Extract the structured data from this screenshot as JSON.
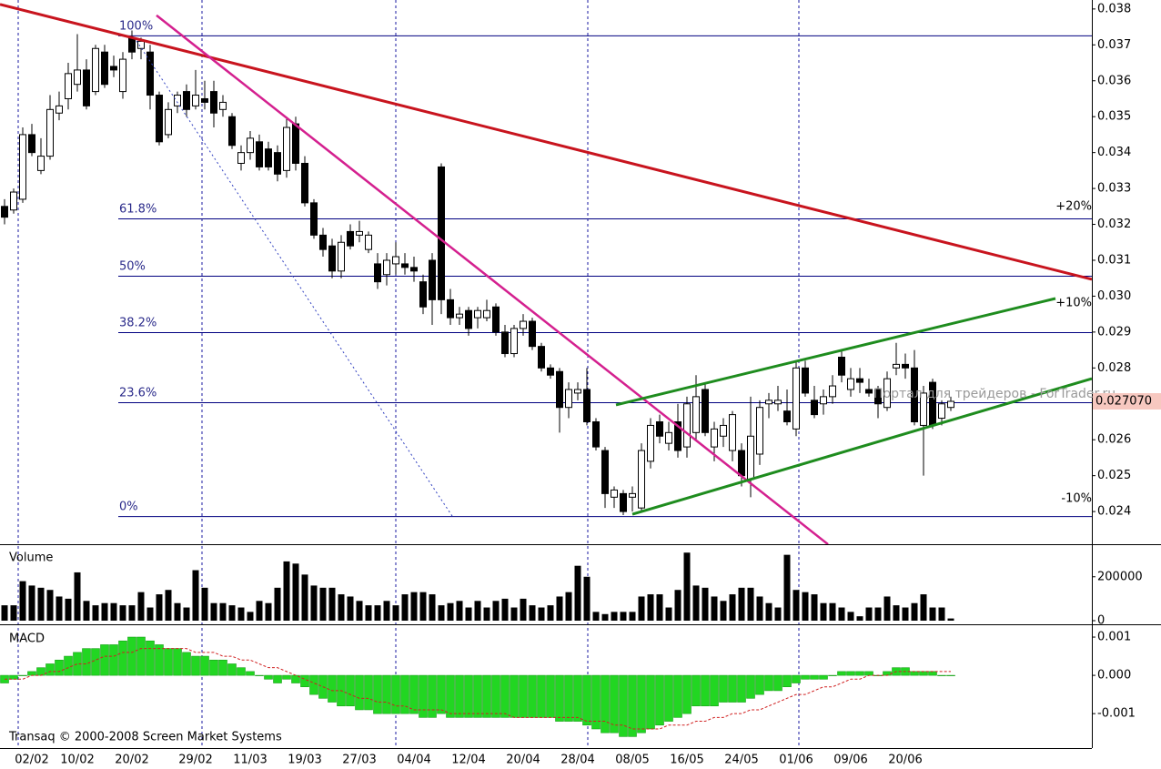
{
  "chart_data": [
    {
      "type": "candlestick",
      "credit": "Transaq © 2000-2008 Screen Market Systems",
      "watermark": "Портал для трейдеров - ForTrader.ru",
      "categories": [
        null,
        null,
        null,
        "02/02",
        null,
        null,
        null,
        null,
        "10/02",
        null,
        null,
        null,
        null,
        null,
        "20/02",
        null,
        null,
        null,
        null,
        null,
        null,
        "29/02",
        null,
        null,
        null,
        null,
        null,
        "11/03",
        null,
        null,
        null,
        null,
        null,
        "19/03",
        null,
        null,
        null,
        null,
        null,
        "27/03",
        null,
        null,
        null,
        null,
        null,
        "04/04",
        null,
        null,
        null,
        null,
        null,
        "12/04",
        null,
        null,
        null,
        null,
        null,
        "20/04",
        null,
        null,
        null,
        null,
        null,
        "28/04",
        null,
        null,
        null,
        null,
        null,
        "08/05",
        null,
        null,
        null,
        null,
        null,
        "16/05",
        null,
        null,
        null,
        null,
        null,
        "24/05",
        null,
        null,
        null,
        null,
        null,
        "01/06",
        null,
        null,
        null,
        null,
        null,
        "09/06",
        null,
        null,
        null,
        null,
        null,
        "20/06",
        null,
        null,
        null,
        null,
        null
      ],
      "open": [
        0.0325,
        0.0324,
        0.0327,
        0.0345,
        0.0335,
        0.0339,
        0.0351,
        0.0355,
        0.0359,
        0.0363,
        0.0357,
        0.0368,
        0.0364,
        0.0357,
        0.0372,
        0.0369,
        0.0368,
        0.0356,
        0.0345,
        0.0353,
        0.0357,
        0.0353,
        0.0355,
        0.0357,
        0.0352,
        0.035,
        0.0337,
        0.034,
        0.0343,
        0.0341,
        0.034,
        0.0335,
        0.0348,
        0.0337,
        0.0326,
        0.0317,
        0.0314,
        0.0307,
        0.0318,
        0.0317,
        0.0313,
        0.0309,
        0.0306,
        0.0309,
        0.0309,
        0.0308,
        0.0304,
        0.031,
        0.0336,
        0.0299,
        0.0294,
        0.0296,
        0.0294,
        0.0294,
        0.0297,
        0.029,
        0.0284,
        0.0291,
        0.0293,
        0.0286,
        0.028,
        0.0279,
        0.0269,
        0.0273,
        0.0274,
        0.0265,
        0.0257,
        0.0244,
        0.0245,
        0.0244,
        0.0241,
        0.0254,
        0.0265,
        0.0259,
        0.0265,
        0.0258,
        0.0262,
        0.0274,
        0.0258,
        0.0261,
        0.0257,
        0.0257,
        0.0249,
        0.0256,
        0.027,
        0.027,
        0.0268,
        0.0263,
        0.028,
        0.0271,
        0.027,
        0.0272,
        0.0283,
        0.0274,
        0.0277,
        0.0274,
        0.0274,
        0.0269,
        0.028,
        0.0281,
        0.028,
        0.0264,
        0.0276,
        0.0266,
        0.0269
      ],
      "high": [
        0.0327,
        0.033,
        0.0347,
        0.0348,
        0.0344,
        0.0356,
        0.0357,
        0.0365,
        0.0373,
        0.0366,
        0.037,
        0.037,
        0.0367,
        0.0368,
        0.0374,
        0.0372,
        0.037,
        0.0357,
        0.0354,
        0.0357,
        0.0359,
        0.0363,
        0.036,
        0.036,
        0.0356,
        0.0351,
        0.0342,
        0.0346,
        0.0345,
        0.0343,
        0.0342,
        0.035,
        0.035,
        0.0339,
        0.0327,
        0.0319,
        0.0316,
        0.0317,
        0.032,
        0.0321,
        0.0318,
        0.0312,
        0.0312,
        0.0315,
        0.0312,
        0.0311,
        0.0306,
        0.0312,
        0.0337,
        0.0302,
        0.0297,
        0.0297,
        0.0297,
        0.0299,
        0.0298,
        0.0292,
        0.0292,
        0.0295,
        0.0294,
        0.0287,
        0.0281,
        0.028,
        0.0276,
        0.0276,
        0.028,
        0.0266,
        0.0258,
        0.0247,
        0.0246,
        0.0247,
        0.0259,
        0.0266,
        0.0267,
        0.0265,
        0.027,
        0.0272,
        0.0278,
        0.0276,
        0.0265,
        0.0266,
        0.0268,
        0.0259,
        0.0272,
        0.0271,
        0.0273,
        0.0275,
        0.0274,
        0.0282,
        0.0282,
        0.0275,
        0.0274,
        0.0278,
        0.0285,
        0.028,
        0.028,
        0.0277,
        0.0275,
        0.0279,
        0.0287,
        0.0284,
        0.0285,
        0.0275,
        0.0277,
        0.0271,
        0.0272
      ],
      "low": [
        0.032,
        0.0323,
        0.0326,
        0.0339,
        0.0334,
        0.0338,
        0.0349,
        0.0352,
        0.0357,
        0.0352,
        0.0356,
        0.0358,
        0.0361,
        0.0355,
        0.0366,
        0.0366,
        0.0352,
        0.0342,
        0.0344,
        0.0351,
        0.035,
        0.0352,
        0.0352,
        0.0347,
        0.035,
        0.0341,
        0.0335,
        0.0338,
        0.0335,
        0.0335,
        0.0332,
        0.0333,
        0.0335,
        0.0325,
        0.0316,
        0.0311,
        0.0305,
        0.0305,
        0.0313,
        0.0315,
        0.0312,
        0.0302,
        0.0303,
        0.0306,
        0.0306,
        0.0304,
        0.0295,
        0.0292,
        0.0295,
        0.0292,
        0.0292,
        0.0289,
        0.0291,
        0.0293,
        0.0289,
        0.0283,
        0.0283,
        0.0289,
        0.0285,
        0.0279,
        0.0277,
        0.0262,
        0.0266,
        0.0271,
        0.0264,
        0.0257,
        0.0241,
        0.0241,
        0.0239,
        0.024,
        0.024,
        0.0252,
        0.0259,
        0.0257,
        0.0255,
        0.0255,
        0.026,
        0.0261,
        0.0254,
        0.0258,
        0.0254,
        0.0247,
        0.0244,
        0.0253,
        0.0266,
        0.0268,
        0.0264,
        0.0261,
        0.0272,
        0.0266,
        0.0267,
        0.027,
        0.0276,
        0.0272,
        0.0273,
        0.0272,
        0.0266,
        0.0268,
        0.0278,
        0.0277,
        0.0264,
        0.025,
        0.0263,
        0.0264,
        0.0268
      ],
      "close": [
        0.0322,
        0.0329,
        0.0345,
        0.034,
        0.0339,
        0.0352,
        0.0353,
        0.0362,
        0.0363,
        0.0353,
        0.0369,
        0.0359,
        0.0363,
        0.0366,
        0.0368,
        0.0371,
        0.0356,
        0.0343,
        0.0352,
        0.0356,
        0.0352,
        0.0356,
        0.0354,
        0.0351,
        0.0354,
        0.0342,
        0.034,
        0.0344,
        0.0336,
        0.0336,
        0.0334,
        0.0347,
        0.0337,
        0.0326,
        0.0317,
        0.0313,
        0.0307,
        0.0315,
        0.0314,
        0.0318,
        0.0317,
        0.0304,
        0.031,
        0.0311,
        0.0308,
        0.0307,
        0.0297,
        0.0299,
        0.0299,
        0.0294,
        0.0295,
        0.0291,
        0.0296,
        0.0296,
        0.029,
        0.0284,
        0.0291,
        0.0293,
        0.0286,
        0.028,
        0.0278,
        0.0269,
        0.0274,
        0.0274,
        0.0265,
        0.0258,
        0.0245,
        0.0246,
        0.024,
        0.0245,
        0.0257,
        0.0264,
        0.0261,
        0.0262,
        0.0257,
        0.027,
        0.0272,
        0.0262,
        0.0263,
        0.0264,
        0.0267,
        0.025,
        0.0261,
        0.0269,
        0.0271,
        0.0271,
        0.0265,
        0.028,
        0.0273,
        0.0267,
        0.0272,
        0.0275,
        0.0278,
        0.0277,
        0.0276,
        0.0273,
        0.027,
        0.0277,
        0.0281,
        0.028,
        0.0265,
        0.0273,
        0.0264,
        0.027,
        0.02707
      ],
      "xlim": [
        -0.5,
        119.5
      ],
      "ylim": [
        0.02309,
        0.03825
      ],
      "yticks": [
        0.038,
        0.037,
        0.036,
        0.035,
        0.034,
        0.033,
        0.032,
        0.031,
        {
          "value": 0.03,
          "label": "0.030"
        },
        0.029,
        0.028,
        0.027,
        0.026,
        0.025,
        0.024
      ],
      "last_price": {
        "value": 0.02707,
        "label": "0.027070"
      },
      "fib_levels": [
        {
          "label": "100%",
          "value": 0.037265
        },
        {
          "label": "61.8%",
          "value": 0.032167
        },
        {
          "label": "50%",
          "value": 0.030569
        },
        {
          "label": "38.2%",
          "value": 0.028997
        },
        {
          "label": "23.6%",
          "value": 0.027044
        },
        {
          "label": "0%",
          "value": 0.023874
        }
      ],
      "lines": [
        {
          "color": "#c8141e",
          "width": 3,
          "from": [
            -0.5,
            0.038127
          ],
          "to": [
            119.5,
            0.030468
          ]
        },
        {
          "color": "#d4208f",
          "width": 2.5,
          "from": [
            16.7,
            0.037822
          ],
          "to": [
            90.5,
            0.023088
          ]
        },
        {
          "color": "#1e8c1e",
          "width": 3,
          "from": [
            67.2,
            0.02697
          ],
          "to": [
            115.5,
            0.029935
          ]
        },
        {
          "color": "#1e8c1e",
          "width": 3,
          "from": [
            69,
            0.023924
          ],
          "to": [
            119.5,
            0.027703
          ]
        },
        {
          "color": "#3040c0",
          "width": 1,
          "style": "dotted",
          "from": [
            14.5,
            0.037112
          ],
          "to": [
            49.2,
            0.023874
          ]
        }
      ],
      "annotations": [
        {
          "text": "+20%",
          "color": "#2a9d2a"
        },
        {
          "text": "+10%",
          "color": "#2a9d2a"
        },
        {
          "text": "-10%",
          "color": "#d03030"
        }
      ]
    },
    {
      "type": "bar",
      "title": "Volume",
      "color": "#000000",
      "values": [
        70000,
        70000,
        180000,
        160000,
        150000,
        140000,
        110000,
        100000,
        220000,
        90000,
        70000,
        80000,
        80000,
        70000,
        70000,
        130000,
        60000,
        120000,
        140000,
        80000,
        60000,
        230000,
        150000,
        80000,
        80000,
        70000,
        60000,
        40000,
        90000,
        80000,
        150000,
        270000,
        260000,
        210000,
        160000,
        150000,
        150000,
        120000,
        110000,
        90000,
        70000,
        70000,
        90000,
        70000,
        120000,
        130000,
        130000,
        120000,
        70000,
        80000,
        90000,
        60000,
        90000,
        60000,
        90000,
        100000,
        60000,
        100000,
        70000,
        60000,
        70000,
        110000,
        130000,
        250000,
        200000,
        40000,
        30000,
        40000,
        40000,
        40000,
        110000,
        120000,
        120000,
        60000,
        140000,
        310000,
        160000,
        150000,
        110000,
        90000,
        120000,
        150000,
        150000,
        110000,
        80000,
        60000,
        300000,
        140000,
        130000,
        120000,
        80000,
        80000,
        60000,
        40000,
        20000,
        60000,
        60000,
        110000,
        70000,
        60000,
        80000,
        120000,
        60000,
        60000,
        10000
      ],
      "xlim": [
        -0.5,
        119.5
      ],
      "ylim": [
        0,
        340000
      ],
      "yticks": [
        200000,
        0
      ]
    },
    {
      "type": "macd",
      "title": "MACD",
      "color": "#22d622",
      "signal_color": "#d02020",
      "values": [
        -0.0002,
        -0.0001,
        0,
        0.0001,
        0.0002,
        0.0003,
        0.0004,
        0.0005,
        0.0006,
        0.0007,
        0.0007,
        0.0008,
        0.0008,
        0.0009,
        0.001,
        0.001,
        0.0009,
        0.0008,
        0.0007,
        0.0007,
        0.0006,
        0.0005,
        0.0005,
        0.0004,
        0.0004,
        0.0003,
        0.0002,
        0.0001,
        0,
        -0.0001,
        -0.0002,
        -0.0001,
        -0.0002,
        -0.0003,
        -0.0005,
        -0.0006,
        -0.0007,
        -0.0008,
        -0.0008,
        -0.0009,
        -0.0009,
        -0.001,
        -0.001,
        -0.001,
        -0.001,
        -0.001,
        -0.0011,
        -0.0011,
        -0.001,
        -0.0011,
        -0.0011,
        -0.0011,
        -0.0011,
        -0.0011,
        -0.0011,
        -0.0011,
        -0.0011,
        -0.0011,
        -0.0011,
        -0.0011,
        -0.0011,
        -0.0012,
        -0.0012,
        -0.0012,
        -0.0013,
        -0.0014,
        -0.0015,
        -0.0015,
        -0.0016,
        -0.0016,
        -0.0015,
        -0.0014,
        -0.0013,
        -0.0012,
        -0.0011,
        -0.001,
        -0.0008,
        -0.0008,
        -0.0008,
        -0.0007,
        -0.0007,
        -0.0007,
        -0.0006,
        -0.0005,
        -0.0004,
        -0.0004,
        -0.0003,
        -0.0002,
        -0.0001,
        -0.0001,
        -0.0001,
        0,
        0.0001,
        0.0001,
        0.0001,
        0.0001,
        0,
        0.0001,
        0.0002,
        0.0002,
        0.0001,
        0.0001,
        0.0001,
        0,
        0
      ],
      "signal": [
        -0.0001,
        -0.0001,
        -0.0001,
        0,
        0,
        0.0001,
        0.0001,
        0.0002,
        0.0003,
        0.0003,
        0.0004,
        0.0005,
        0.0005,
        0.0006,
        0.0006,
        0.0007,
        0.0007,
        0.0007,
        0.0007,
        0.0007,
        0.0007,
        0.0006,
        0.0006,
        0.0006,
        0.0005,
        0.0005,
        0.0004,
        0.0004,
        0.0003,
        0.0002,
        0.0002,
        0.0001,
        0,
        -0.0001,
        -0.0002,
        -0.0003,
        -0.0004,
        -0.0004,
        -0.0005,
        -0.0006,
        -0.0006,
        -0.0007,
        -0.0007,
        -0.0008,
        -0.0008,
        -0.0009,
        -0.0009,
        -0.0009,
        -0.0009,
        -0.001,
        -0.001,
        -0.001,
        -0.001,
        -0.001,
        -0.001,
        -0.001,
        -0.0011,
        -0.0011,
        -0.0011,
        -0.0011,
        -0.0011,
        -0.0011,
        -0.0011,
        -0.0011,
        -0.0012,
        -0.0012,
        -0.0012,
        -0.0013,
        -0.0013,
        -0.0014,
        -0.0014,
        -0.0014,
        -0.0014,
        -0.0013,
        -0.0013,
        -0.0013,
        -0.0012,
        -0.0012,
        -0.0011,
        -0.0011,
        -0.001,
        -0.001,
        -0.0009,
        -0.0009,
        -0.0008,
        -0.0007,
        -0.0006,
        -0.0005,
        -0.0005,
        -0.0004,
        -0.0003,
        -0.0003,
        -0.0002,
        -0.0001,
        -0.0001,
        0,
        0,
        0,
        0.0001,
        0.0001,
        0.0001,
        0.0001,
        0.0001,
        0.0001,
        0.0001
      ],
      "xlim": [
        -0.5,
        119.5
      ],
      "ylim": [
        -0.0019,
        0.00131
      ],
      "yticks": [
        0.001,
        {
          "value": 0,
          "label": "0.000"
        },
        -0.001
      ]
    }
  ]
}
